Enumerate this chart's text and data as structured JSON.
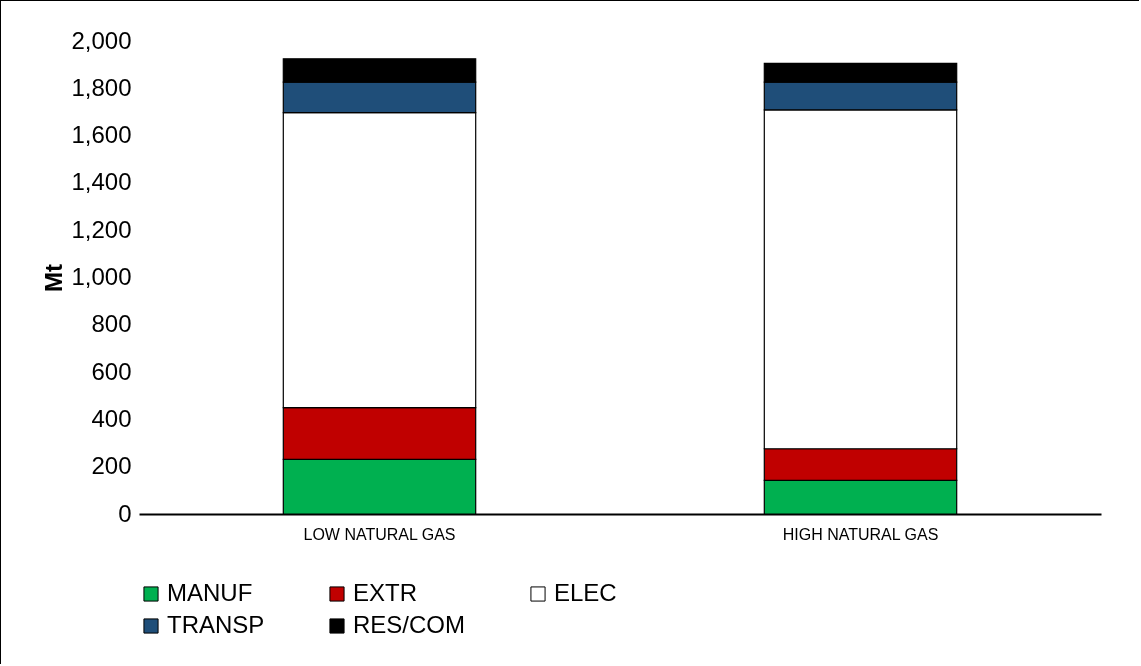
{
  "chart_data": {
    "type": "bar",
    "stacked": true,
    "ylabel": "Mt",
    "categories": [
      "LOW NATURAL GAS",
      "HIGH NATURAL GAS"
    ],
    "series": [
      {
        "name": "MANUF",
        "color": "#00b050",
        "values": [
          231,
          142
        ]
      },
      {
        "name": "EXTR",
        "color": "#c00000",
        "values": [
          219,
          134
        ]
      },
      {
        "name": "ELEC",
        "color": "#ffffff",
        "values": [
          1247,
          1433
        ]
      },
      {
        "name": "TRANSP",
        "color": "#1f4e79",
        "values": [
          129,
          117
        ]
      },
      {
        "name": "RES/COM",
        "color": "#000000",
        "values": [
          99,
          79
        ]
      }
    ],
    "ylim": [
      0,
      2000
    ],
    "yticks": [
      0,
      200,
      400,
      600,
      800,
      {
        "value": 1000,
        "label": "1,000"
      },
      {
        "value": 1200,
        "label": "1,200"
      },
      {
        "value": 1400,
        "label": "1,400"
      },
      {
        "value": 1600,
        "label": "1,600"
      },
      {
        "value": 1800,
        "label": "1,800"
      },
      {
        "value": 2000,
        "label": "2,000"
      }
    ],
    "grid": false,
    "legend": "bottom"
  }
}
